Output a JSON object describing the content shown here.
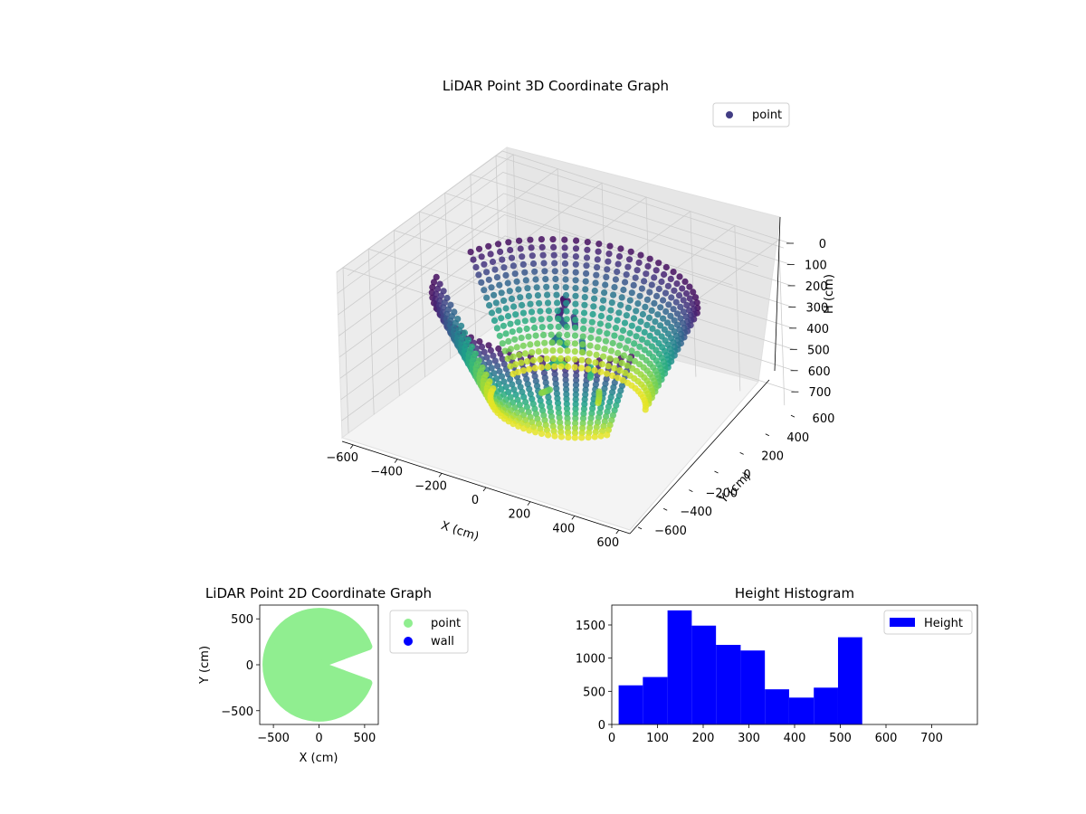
{
  "colors": {
    "point_2d": "#90ee90",
    "wall_2d": "#0000ff",
    "hist_bar": "#0000ff",
    "legend_3d_marker": "#423d84",
    "axis_pane": "#f2f2f2",
    "grid": "#cccccc"
  },
  "chart_data": [
    {
      "type": "scatter",
      "title": "LiDAR Point 3D Coordinate Graph",
      "xlabel": "X (cm)",
      "ylabel": "Y (cm)",
      "zlabel": "H (cm)",
      "projection": "3d",
      "z_inverted": true,
      "colormap": "viridis",
      "xlim": [
        -650,
        650
      ],
      "ylim": [
        -650,
        650
      ],
      "zlim": [
        0,
        780
      ],
      "x_ticks": [
        -600,
        -400,
        -200,
        0,
        200,
        400,
        600
      ],
      "y_ticks": [
        -600,
        -400,
        -200,
        0,
        200,
        400,
        600
      ],
      "z_ticks": [
        0,
        100,
        200,
        300,
        400,
        500,
        600,
        700
      ],
      "legend": {
        "entries": [
          "point"
        ],
        "location": "upper-right"
      },
      "grid": true
    },
    {
      "type": "scatter",
      "title": "LiDAR Point 2D Coordinate Graph",
      "xlabel": "X (cm)",
      "ylabel": "Y (cm)",
      "xlim": [
        -650,
        650
      ],
      "ylim": [
        -650,
        650
      ],
      "x_ticks": [
        -500,
        0,
        500
      ],
      "y_ticks": [
        -500,
        0,
        500
      ],
      "series": [
        {
          "name": "point",
          "color": "#90ee90",
          "shape": "disc-with-notch",
          "radius": 580,
          "notch_angle_deg": [
            -20,
            20
          ]
        },
        {
          "name": "wall",
          "color": "#0000ff",
          "points": []
        }
      ],
      "legend": {
        "entries": [
          "point",
          "wall"
        ],
        "location": "outside-right"
      }
    },
    {
      "type": "bar",
      "subtype": "histogram",
      "title": "Height Histogram",
      "xlabel": "",
      "ylabel": "",
      "xlim": [
        0,
        800
      ],
      "ylim": [
        0,
        1800
      ],
      "x_ticks": [
        0,
        100,
        200,
        300,
        400,
        500,
        600,
        700
      ],
      "y_ticks": [
        0,
        500,
        1000,
        1500
      ],
      "bin_edges": [
        15,
        68,
        122,
        175,
        228,
        282,
        335,
        388,
        442,
        495,
        548
      ],
      "values": [
        590,
        715,
        1720,
        1490,
        1200,
        1115,
        530,
        405,
        555,
        1315
      ],
      "series": [
        {
          "name": "Height",
          "color": "#0000ff"
        }
      ],
      "legend": {
        "entries": [
          "Height"
        ],
        "location": "upper-right"
      }
    }
  ]
}
